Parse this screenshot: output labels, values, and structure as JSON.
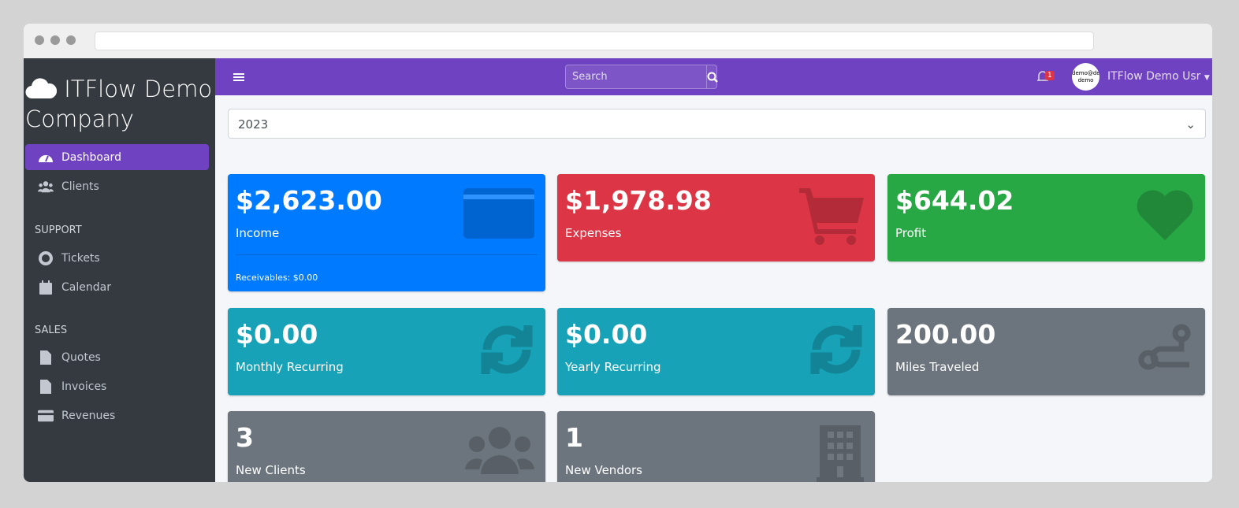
{
  "app": {
    "brand": "ITFlow Demo Company"
  },
  "sidebar": {
    "items": [
      {
        "label": "Dashboard",
        "icon": "tachometer-icon",
        "active": true
      },
      {
        "label": "Clients",
        "icon": "users-icon"
      }
    ],
    "sections": [
      {
        "header": "SUPPORT",
        "items": [
          {
            "label": "Tickets",
            "icon": "life-ring-icon"
          },
          {
            "label": "Calendar",
            "icon": "calendar-icon"
          }
        ]
      },
      {
        "header": "SALES",
        "items": [
          {
            "label": "Quotes",
            "icon": "file-icon"
          },
          {
            "label": "Invoices",
            "icon": "file-invoice-dollar-icon"
          },
          {
            "label": "Revenues",
            "icon": "credit-card-icon"
          }
        ]
      }
    ]
  },
  "topbar": {
    "search_placeholder": "Search",
    "notification_count": "1",
    "avatar_text": "demo@demo demo",
    "user": "ITFlow Demo Usr"
  },
  "year_select": {
    "value": "2023"
  },
  "cards": [
    {
      "value": "$2,623.00",
      "label": "Income",
      "footer": "Receivables: $0.00",
      "color": "#007bff",
      "icon": "credit-card-icon"
    },
    {
      "value": "$1,978.98",
      "label": "Expenses",
      "color": "#dc3545",
      "icon": "shopping-cart-icon"
    },
    {
      "value": "$644.02",
      "label": "Profit",
      "color": "#28a745",
      "icon": "heart-icon"
    },
    {
      "value": "$0.00",
      "label": "Monthly Recurring",
      "color": "#17a2b8",
      "icon": "sync-icon"
    },
    {
      "value": "$0.00",
      "label": "Yearly Recurring",
      "color": "#17a2b8",
      "icon": "sync-icon"
    },
    {
      "value": "200.00",
      "label": "Miles Traveled",
      "color": "#6c757d",
      "icon": "route-icon"
    },
    {
      "value": "3",
      "label": "New Clients",
      "color": "#6c757d",
      "icon": "users-icon"
    },
    {
      "value": "1",
      "label": "New Vendors",
      "color": "#6c757d",
      "icon": "building-icon"
    }
  ]
}
